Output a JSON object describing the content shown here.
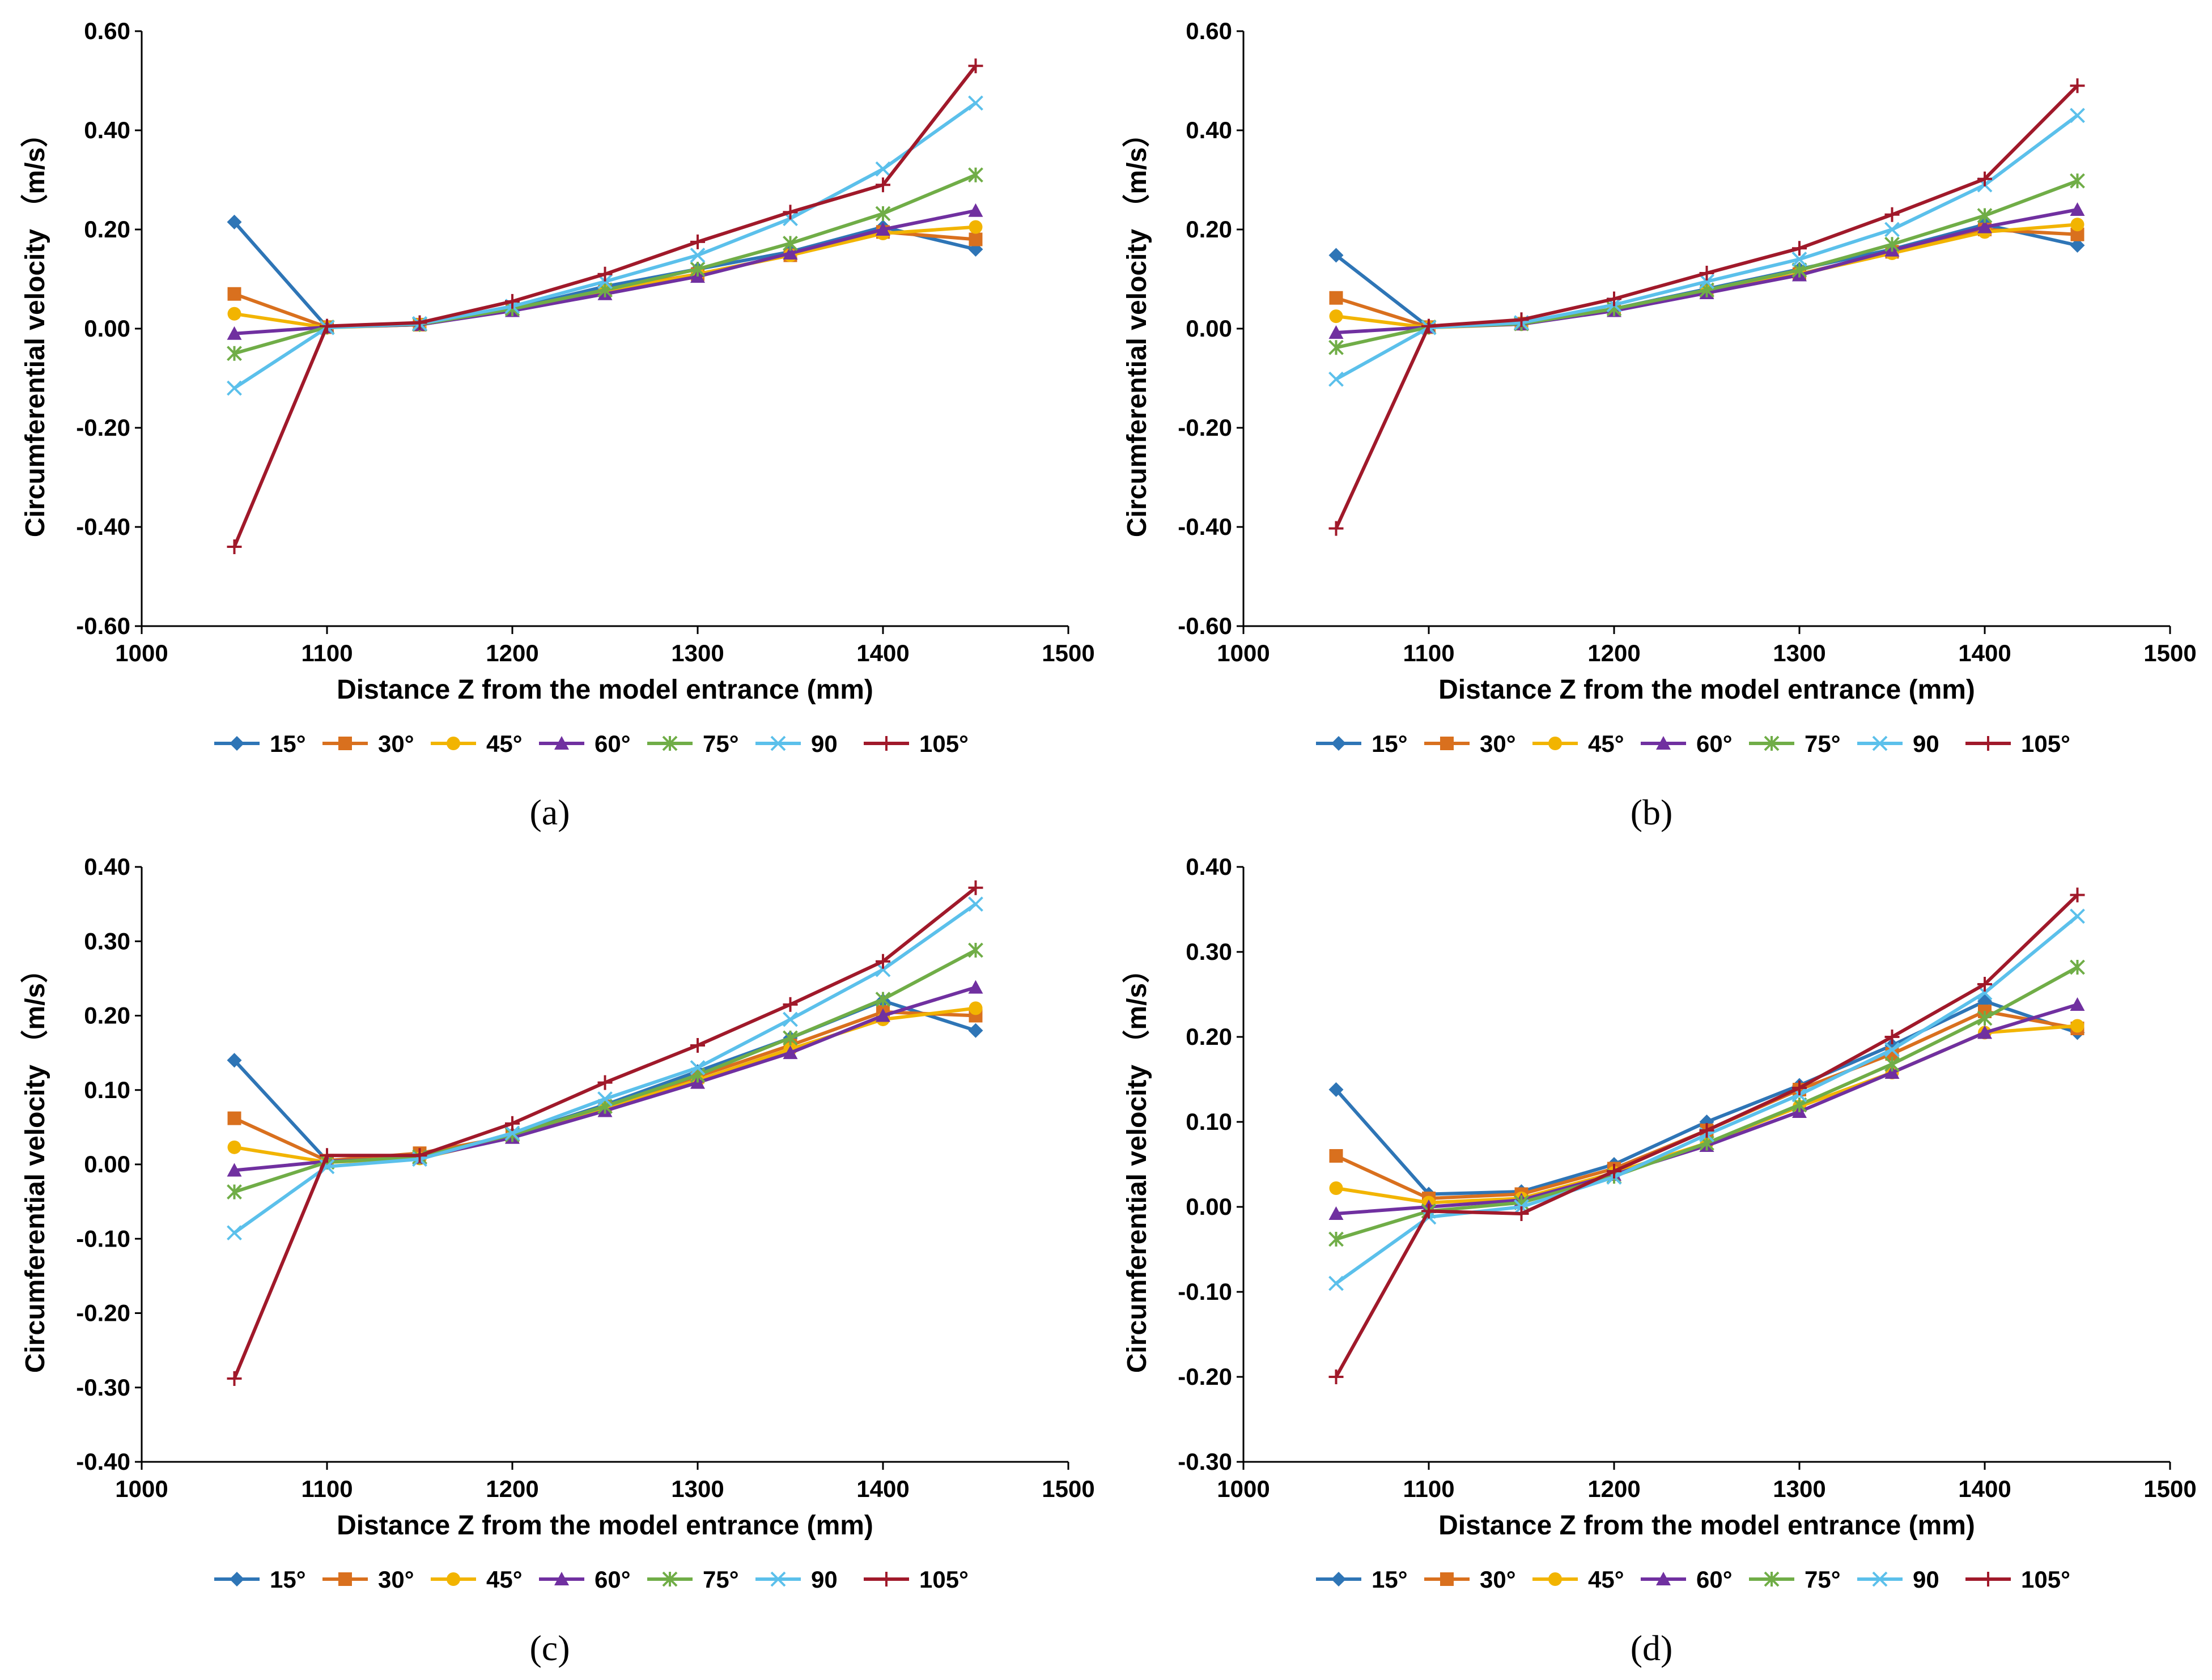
{
  "colors": {
    "15°": "#2E75B6",
    "30°": "#D9701E",
    "45°": "#F2B400",
    "60°": "#7030A0",
    "75°": "#70AD47",
    "90": "#5BC0EB",
    "105°": "#A0192A"
  },
  "markers": {
    "15°": "diamond",
    "30°": "square",
    "45°": "circle",
    "60°": "triangle",
    "75°": "asterisk",
    "90": "x",
    "105°": "plus"
  },
  "chart_data": [
    {
      "type": "line",
      "panel_label": "(a)",
      "xlabel": "Distance Z from the model entrance (mm)",
      "ylabel": "Circumferential velocity （m/s）",
      "xlim": [
        1000,
        1500
      ],
      "xticks": [
        1000,
        1100,
        1200,
        1300,
        1400,
        1500
      ],
      "ylim": [
        -0.6,
        0.6
      ],
      "yticks": [
        -0.6,
        -0.4,
        -0.2,
        0.0,
        0.2,
        0.4,
        0.6
      ],
      "ytick_labels": [
        "-0.60",
        "-0.40",
        "-0.20",
        "0.00",
        "0.20",
        "0.40",
        "0.60"
      ],
      "legend": "bottom",
      "grid": false,
      "x": [
        1050,
        1100,
        1150,
        1200,
        1250,
        1300,
        1350,
        1400,
        1450
      ],
      "series": [
        {
          "name": "15°",
          "values": [
            0.215,
            0.003,
            0.008,
            0.04,
            0.085,
            0.12,
            0.155,
            0.205,
            0.16
          ]
        },
        {
          "name": "30°",
          "values": [
            0.07,
            0.003,
            0.008,
            0.038,
            0.078,
            0.11,
            0.148,
            0.195,
            0.18
          ]
        },
        {
          "name": "45°",
          "values": [
            0.03,
            0.002,
            0.008,
            0.037,
            0.075,
            0.11,
            0.148,
            0.192,
            0.205
          ]
        },
        {
          "name": "60°",
          "values": [
            -0.01,
            0.003,
            0.008,
            0.036,
            0.07,
            0.105,
            0.152,
            0.2,
            0.238
          ]
        },
        {
          "name": "75°",
          "values": [
            -0.05,
            0.003,
            0.009,
            0.04,
            0.078,
            0.12,
            0.172,
            0.232,
            0.31
          ]
        },
        {
          "name": "90",
          "values": [
            -0.12,
            0.002,
            0.01,
            0.045,
            0.095,
            0.148,
            0.222,
            0.322,
            0.455
          ]
        },
        {
          "name": "105°",
          "values": [
            -0.44,
            0.005,
            0.012,
            0.055,
            0.11,
            0.175,
            0.235,
            0.29,
            0.53
          ]
        }
      ]
    },
    {
      "type": "line",
      "panel_label": "(b)",
      "xlabel": "Distance Z from the model entrance (mm)",
      "ylabel": "Circumferential velocity （m/s）",
      "xlim": [
        1000,
        1500
      ],
      "xticks": [
        1000,
        1100,
        1200,
        1300,
        1400,
        1500
      ],
      "ylim": [
        -0.6,
        0.6
      ],
      "yticks": [
        -0.6,
        -0.4,
        -0.2,
        0.0,
        0.2,
        0.4,
        0.6
      ],
      "ytick_labels": [
        "-0.60",
        "-0.40",
        "-0.20",
        "0.00",
        "0.20",
        "0.40",
        "0.60"
      ],
      "legend": "bottom",
      "grid": false,
      "x": [
        1050,
        1100,
        1150,
        1200,
        1250,
        1300,
        1350,
        1400,
        1450
      ],
      "series": [
        {
          "name": "15°",
          "values": [
            0.148,
            0.003,
            0.01,
            0.04,
            0.08,
            0.12,
            0.16,
            0.21,
            0.168
          ]
        },
        {
          "name": "30°",
          "values": [
            0.062,
            0.003,
            0.01,
            0.038,
            0.076,
            0.11,
            0.155,
            0.2,
            0.19
          ]
        },
        {
          "name": "45°",
          "values": [
            0.025,
            0.002,
            0.009,
            0.037,
            0.074,
            0.11,
            0.152,
            0.195,
            0.21
          ]
        },
        {
          "name": "60°",
          "values": [
            -0.008,
            0.003,
            0.009,
            0.036,
            0.072,
            0.108,
            0.158,
            0.205,
            0.24
          ]
        },
        {
          "name": "75°",
          "values": [
            -0.038,
            0.003,
            0.01,
            0.04,
            0.078,
            0.118,
            0.17,
            0.228,
            0.298
          ]
        },
        {
          "name": "90",
          "values": [
            -0.102,
            0.002,
            0.012,
            0.048,
            0.095,
            0.14,
            0.2,
            0.29,
            0.43
          ]
        },
        {
          "name": "105°",
          "values": [
            -0.403,
            0.005,
            0.018,
            0.06,
            0.112,
            0.162,
            0.23,
            0.302,
            0.49
          ]
        }
      ]
    },
    {
      "type": "line",
      "panel_label": "(c)",
      "xlabel": "Distance Z from the model entrance (mm)",
      "ylabel": "Circumferential velocity （m/s）",
      "xlim": [
        1000,
        1500
      ],
      "xticks": [
        1000,
        1100,
        1200,
        1300,
        1400,
        1500
      ],
      "ylim": [
        -0.4,
        0.4
      ],
      "yticks": [
        -0.4,
        -0.3,
        -0.2,
        -0.1,
        0.0,
        0.1,
        0.2,
        0.3,
        0.4
      ],
      "ytick_labels": [
        "-0.40",
        "-0.30",
        "-0.20",
        "-0.10",
        "0.00",
        "0.10",
        "0.20",
        "0.30",
        "0.40"
      ],
      "legend": "bottom",
      "grid": false,
      "x": [
        1050,
        1100,
        1150,
        1200,
        1250,
        1300,
        1350,
        1400,
        1450
      ],
      "series": [
        {
          "name": "15°",
          "values": [
            0.14,
            0.005,
            0.01,
            0.04,
            0.08,
            0.125,
            0.17,
            0.22,
            0.18
          ]
        },
        {
          "name": "30°",
          "values": [
            0.062,
            0.005,
            0.015,
            0.038,
            0.078,
            0.118,
            0.16,
            0.205,
            0.2
          ]
        },
        {
          "name": "45°",
          "values": [
            0.023,
            0.003,
            0.008,
            0.037,
            0.075,
            0.113,
            0.155,
            0.195,
            0.21
          ]
        },
        {
          "name": "60°",
          "values": [
            -0.008,
            0.004,
            0.009,
            0.036,
            0.072,
            0.11,
            0.15,
            0.2,
            0.238
          ]
        },
        {
          "name": "75°",
          "values": [
            -0.037,
            0.003,
            0.01,
            0.04,
            0.078,
            0.12,
            0.17,
            0.222,
            0.288
          ]
        },
        {
          "name": "90",
          "values": [
            -0.092,
            -0.003,
            0.007,
            0.042,
            0.088,
            0.13,
            0.195,
            0.262,
            0.35
          ]
        },
        {
          "name": "105°",
          "values": [
            -0.288,
            0.012,
            0.012,
            0.055,
            0.11,
            0.16,
            0.215,
            0.273,
            0.372
          ]
        }
      ]
    },
    {
      "type": "line",
      "panel_label": "(d)",
      "xlabel": "Distance Z from the model entrance (mm)",
      "ylabel": "Circumferential velocity （m/s）",
      "xlim": [
        1000,
        1500
      ],
      "xticks": [
        1000,
        1100,
        1200,
        1300,
        1400,
        1500
      ],
      "ylim": [
        -0.3,
        0.4
      ],
      "yticks": [
        -0.3,
        -0.2,
        -0.1,
        0.0,
        0.1,
        0.2,
        0.3,
        0.4
      ],
      "ytick_labels": [
        "-0.30",
        "-0.20",
        "-0.10",
        "0.00",
        "0.10",
        "0.20",
        "0.30",
        "0.40"
      ],
      "legend": "bottom",
      "grid": false,
      "x": [
        1050,
        1100,
        1150,
        1200,
        1250,
        1300,
        1350,
        1400,
        1450
      ],
      "series": [
        {
          "name": "15°",
          "values": [
            0.138,
            0.015,
            0.018,
            0.05,
            0.1,
            0.143,
            0.19,
            0.242,
            0.205
          ]
        },
        {
          "name": "30°",
          "values": [
            0.06,
            0.01,
            0.015,
            0.045,
            0.09,
            0.138,
            0.18,
            0.23,
            0.21
          ]
        },
        {
          "name": "45°",
          "values": [
            0.022,
            0.005,
            0.01,
            0.04,
            0.075,
            0.118,
            0.158,
            0.205,
            0.213
          ]
        },
        {
          "name": "60°",
          "values": [
            -0.008,
            0.0,
            0.008,
            0.038,
            0.072,
            0.112,
            0.158,
            0.205,
            0.238
          ]
        },
        {
          "name": "75°",
          "values": [
            -0.038,
            -0.005,
            0.005,
            0.036,
            0.075,
            0.12,
            0.168,
            0.222,
            0.282
          ]
        },
        {
          "name": "90",
          "values": [
            -0.09,
            -0.012,
            0.0,
            0.035,
            0.085,
            0.132,
            0.185,
            0.252,
            0.342
          ]
        },
        {
          "name": "105°",
          "values": [
            -0.2,
            -0.005,
            -0.008,
            0.042,
            0.09,
            0.14,
            0.2,
            0.262,
            0.367
          ]
        }
      ]
    }
  ]
}
